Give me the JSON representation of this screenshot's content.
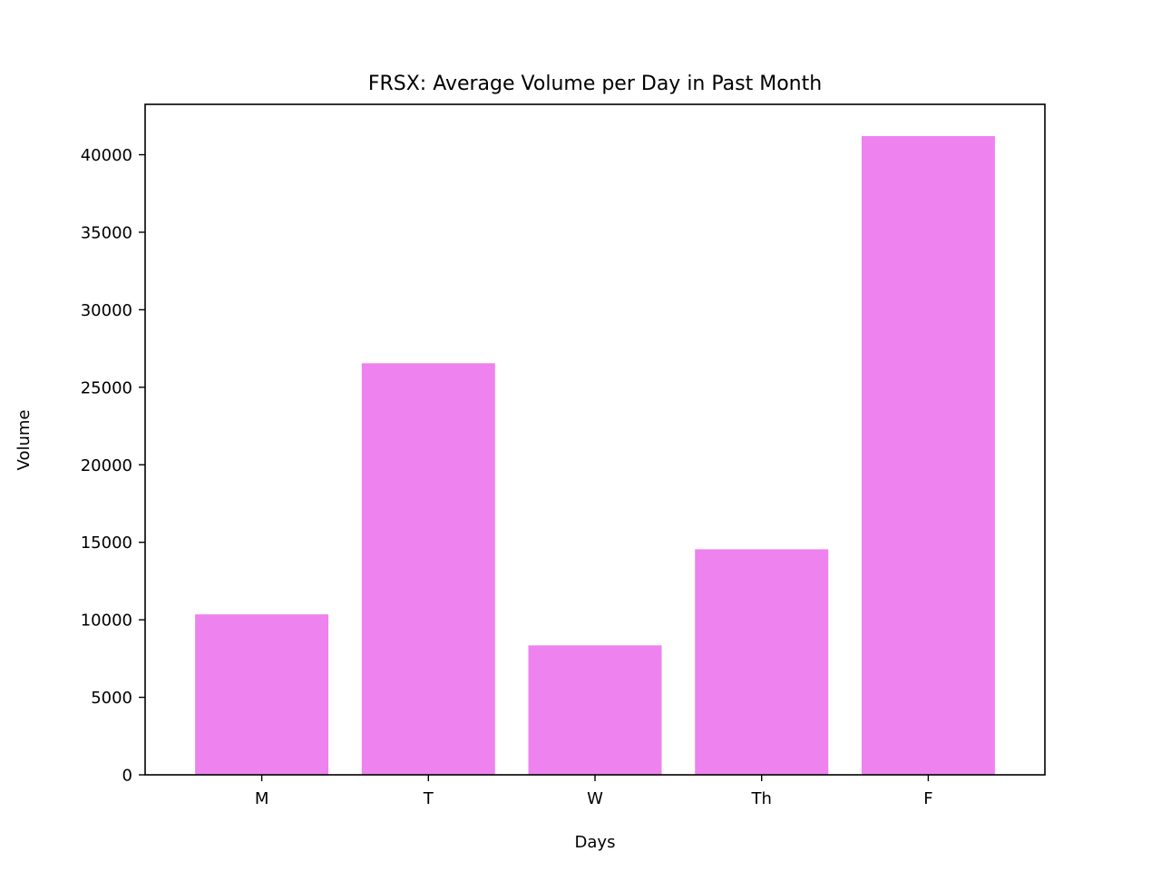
{
  "chart_data": {
    "type": "bar",
    "title": "FRSX: Average Volume per Day in Past Month",
    "xlabel": "Days",
    "ylabel": "Volume",
    "categories": [
      "M",
      "T",
      "W",
      "Th",
      "F"
    ],
    "values": [
      10350,
      26550,
      8350,
      14550,
      41200
    ],
    "ylim": [
      0,
      43250
    ],
    "yticks": [
      0,
      5000,
      10000,
      15000,
      20000,
      25000,
      30000,
      35000,
      40000
    ],
    "bar_color": "#ee82ee",
    "grid": false,
    "legend": "none"
  }
}
